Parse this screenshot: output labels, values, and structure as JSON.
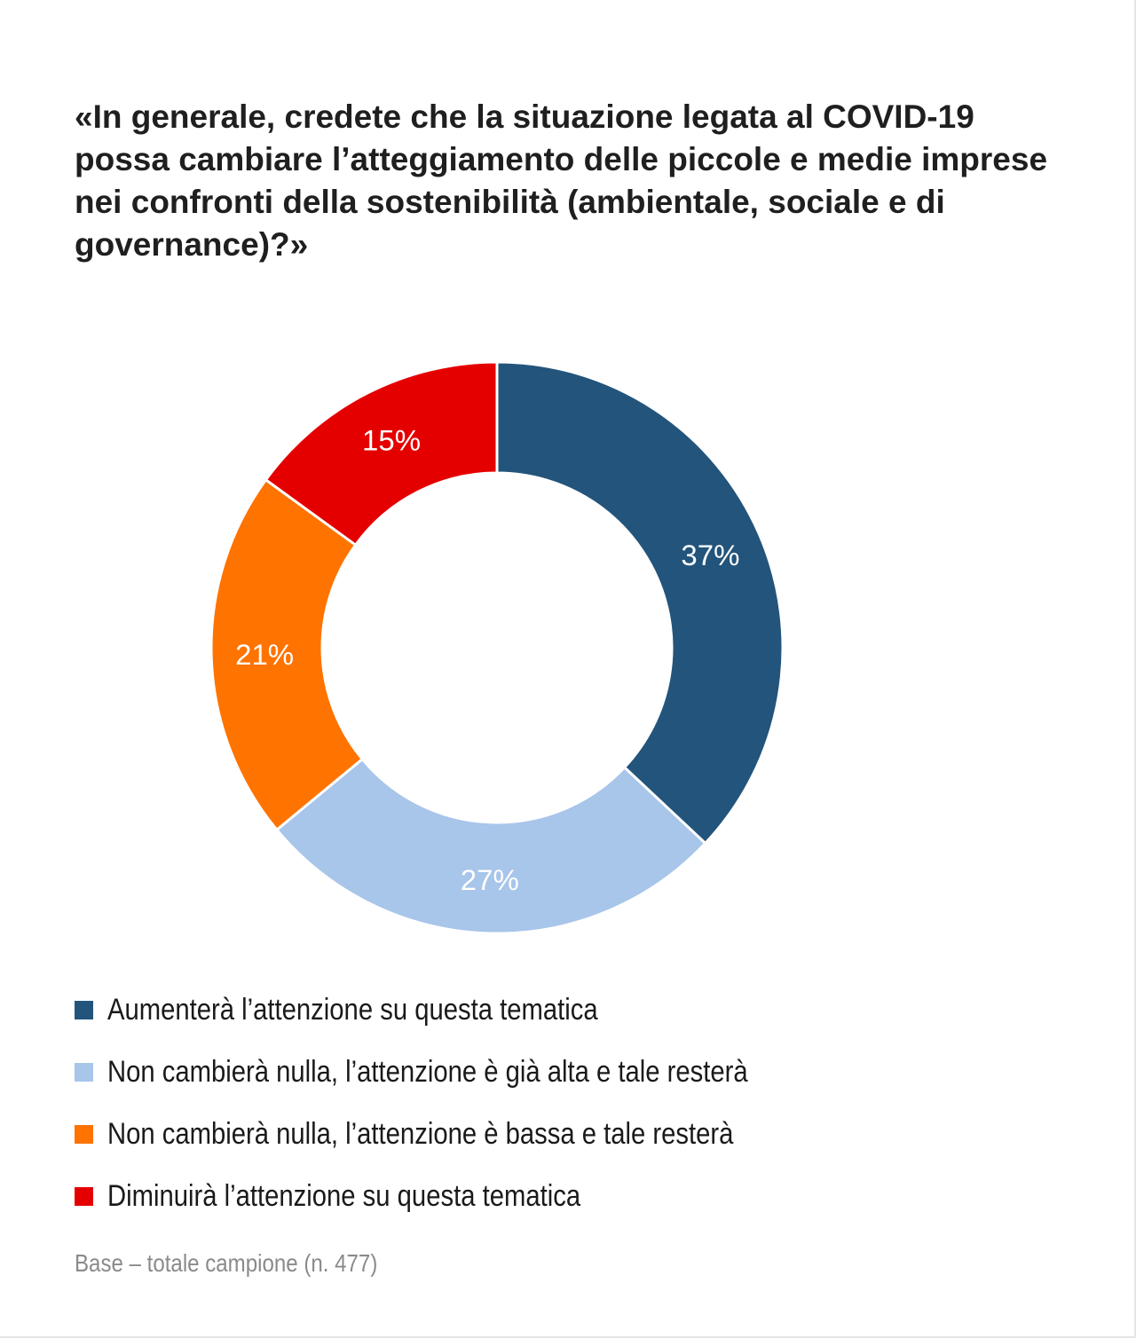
{
  "title": "«In generale, credete che la situazione legata al COVID-19 possa cambiare l’atteggiamento delle piccole e medie imprese nei confronti della sostenibilità (ambientale, sociale e di governance)?»",
  "chart_data": {
    "type": "pie",
    "donut": true,
    "title": "«In generale, credete che la situazione legata al COVID-19 possa cambiare l’atteggiamento delle piccole e medie imprese nei confronti della sostenibilità (ambientale, sociale e di governance)?»",
    "unit": "%",
    "categories": [
      "Aumenterà l’attenzione su questa tematica",
      "Non cambierà nulla, l’attenzione è già alta e tale resterà",
      "Non cambierà nulla, l’attenzione è bassa e tale resterà",
      "Diminuirà l’attenzione su questa tematica"
    ],
    "values": [
      37,
      27,
      21,
      15
    ],
    "value_labels": [
      "37%",
      "27%",
      "21%",
      "15%"
    ],
    "colors": [
      "#23547b",
      "#a8c5ea",
      "#ff7300",
      "#e50000"
    ],
    "legend_position": "bottom",
    "start": "top, clockwise"
  },
  "footnote": "Base – totale campione (n. 477)"
}
